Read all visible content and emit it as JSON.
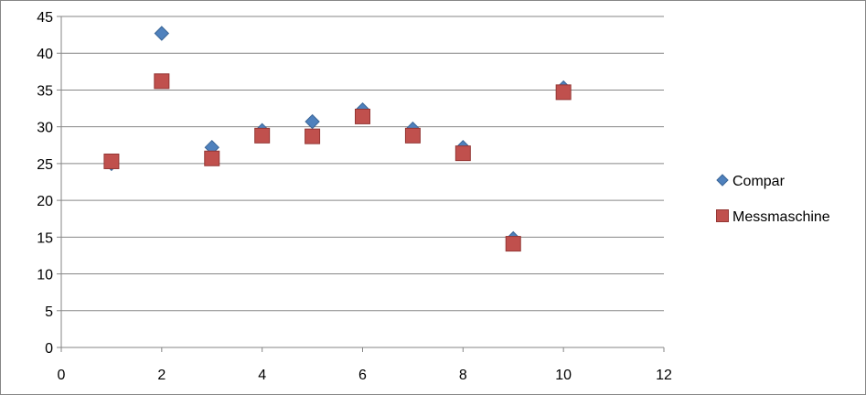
{
  "chart_data": {
    "type": "scatter",
    "title": "",
    "xlabel": "",
    "ylabel": "",
    "xlim": [
      0,
      12
    ],
    "ylim": [
      0,
      45
    ],
    "x_ticks": [
      0,
      2,
      4,
      6,
      8,
      10,
      12
    ],
    "y_ticks": [
      0,
      5,
      10,
      15,
      20,
      25,
      30,
      35,
      40,
      45
    ],
    "grid": {
      "horizontal": true,
      "vertical": false
    },
    "legend_position": "right",
    "series": [
      {
        "name": "Compar",
        "marker": "diamond",
        "color": "#4F81BD",
        "stroke": "#3A6596",
        "x": [
          1,
          2,
          3,
          4,
          5,
          6,
          7,
          8,
          9,
          10
        ],
        "y": [
          25,
          42.7,
          27.2,
          29.5,
          30.7,
          32.3,
          29.7,
          27.2,
          14.8,
          35.3
        ]
      },
      {
        "name": "Messmaschine",
        "marker": "square",
        "color": "#C0504D",
        "stroke": "#943634",
        "x": [
          1,
          2,
          3,
          4,
          5,
          6,
          7,
          8,
          9,
          10
        ],
        "y": [
          25.3,
          36.2,
          25.7,
          28.8,
          28.7,
          31.4,
          28.8,
          26.4,
          14.1,
          34.7
        ]
      }
    ]
  }
}
